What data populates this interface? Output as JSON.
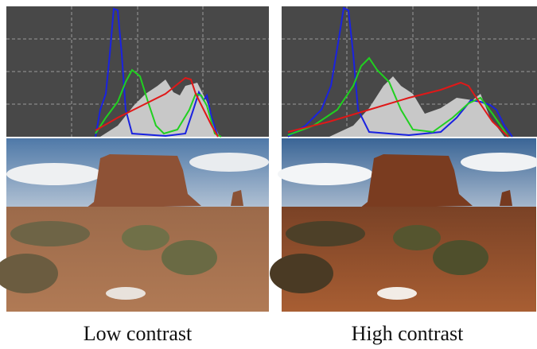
{
  "captions": {
    "left": "Low contrast",
    "right": "High contrast"
  }
}
